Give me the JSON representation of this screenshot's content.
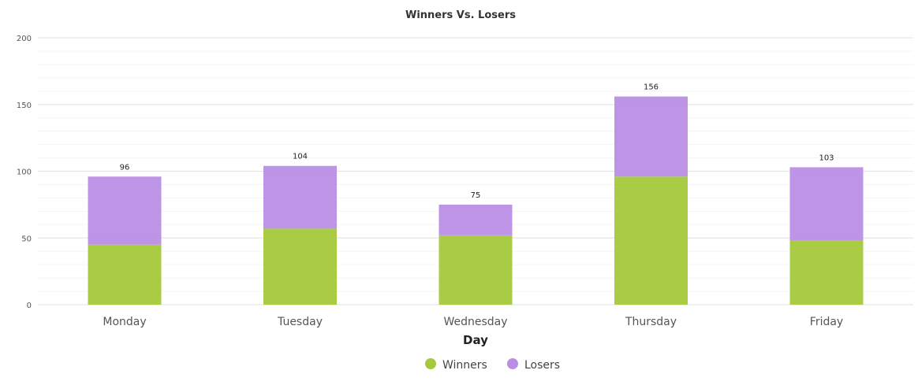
{
  "chart_data": {
    "type": "bar",
    "stacked": true,
    "title": "Winners Vs. Losers",
    "xlabel": "Day",
    "ylabel": "",
    "ylim": [
      0,
      200
    ],
    "yticks": [
      0,
      50,
      100,
      150,
      200
    ],
    "grid": true,
    "legend": "bottom-center",
    "categories": [
      "Monday",
      "Tuesday",
      "Wednesday",
      "Thursday",
      "Friday"
    ],
    "series": [
      {
        "name": "Winners",
        "color": "#a5c93a",
        "values": [
          45,
          57,
          52,
          96,
          48
        ]
      },
      {
        "name": "Losers",
        "color": "#bb8ee6",
        "values": [
          51,
          47,
          23,
          60,
          55
        ]
      }
    ],
    "totals": [
      "96",
      "104",
      "75",
      "156",
      "103"
    ]
  }
}
